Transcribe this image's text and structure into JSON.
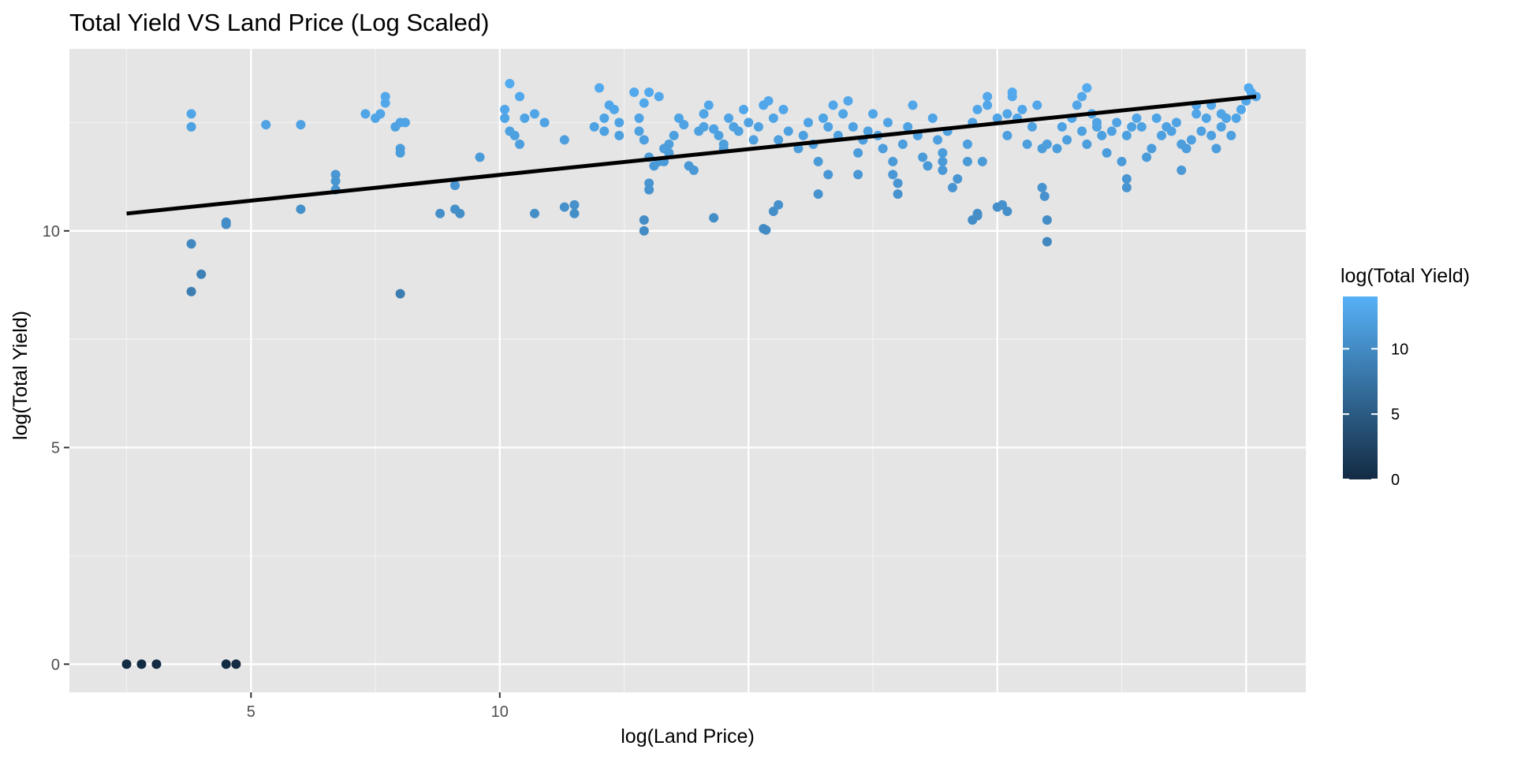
{
  "chart_data": {
    "type": "scatter",
    "title": "Total Yield VS Land Price (Log Scaled)",
    "xlabel": "log(Land Price)",
    "ylabel": "log(Total Yield)",
    "xlim": [
      1.35,
      26.2
    ],
    "ylim": [
      -0.65,
      14.2
    ],
    "x_ticks": [
      5,
      10
    ],
    "y_ticks": [
      0,
      5,
      10
    ],
    "x_tick_labels": [
      "5",
      "10"
    ],
    "y_tick_labels": [
      "0",
      "5",
      "10"
    ],
    "background": "#e5e5e5",
    "grid": true,
    "legend": {
      "title": "log(Total Yield)",
      "position": "right",
      "ticks": [
        0,
        5,
        10
      ],
      "tick_labels": [
        "0",
        "5",
        "10"
      ],
      "range": [
        0,
        14
      ],
      "color_low": "#132b43",
      "color_high": "#56b1f7"
    },
    "trend_line": {
      "x": [
        2.5,
        25.2
      ],
      "y": [
        10.4,
        13.1
      ],
      "color": "#000000"
    },
    "points": [
      [
        2.5,
        0
      ],
      [
        2.8,
        0
      ],
      [
        3.1,
        0
      ],
      [
        4.5,
        0
      ],
      [
        4.7,
        0
      ],
      [
        3.8,
        12.7
      ],
      [
        3.8,
        12.4
      ],
      [
        3.8,
        9.7
      ],
      [
        3.8,
        8.6
      ],
      [
        4.0,
        9.0
      ],
      [
        4.5,
        10.2
      ],
      [
        4.5,
        10.15
      ],
      [
        5.3,
        12.45
      ],
      [
        6.0,
        12.45
      ],
      [
        6.0,
        10.5
      ],
      [
        6.7,
        11.3
      ],
      [
        6.7,
        11.15
      ],
      [
        6.7,
        10.95
      ],
      [
        7.3,
        12.7
      ],
      [
        7.5,
        12.6
      ],
      [
        7.6,
        12.7
      ],
      [
        7.7,
        12.95
      ],
      [
        7.7,
        13.1
      ],
      [
        7.9,
        12.4
      ],
      [
        8.0,
        12.5
      ],
      [
        8.0,
        11.9
      ],
      [
        8.0,
        11.8
      ],
      [
        8.1,
        12.5
      ],
      [
        8.0,
        8.55
      ],
      [
        8.8,
        10.4
      ],
      [
        9.1,
        11.05
      ],
      [
        9.1,
        10.5
      ],
      [
        9.2,
        10.4
      ],
      [
        9.6,
        11.7
      ],
      [
        10.1,
        12.8
      ],
      [
        10.1,
        12.6
      ],
      [
        10.2,
        12.3
      ],
      [
        10.3,
        12.2
      ],
      [
        10.4,
        12.0
      ],
      [
        10.2,
        13.4
      ],
      [
        10.4,
        13.1
      ],
      [
        10.5,
        12.6
      ],
      [
        10.7,
        12.7
      ],
      [
        10.9,
        12.5
      ],
      [
        10.7,
        10.4
      ],
      [
        11.3,
        12.1
      ],
      [
        11.3,
        10.55
      ],
      [
        11.5,
        10.6
      ],
      [
        11.5,
        10.4
      ],
      [
        11.9,
        12.4
      ],
      [
        12.0,
        13.3
      ],
      [
        12.1,
        12.6
      ],
      [
        12.2,
        12.9
      ],
      [
        12.1,
        12.3
      ],
      [
        12.3,
        12.8
      ],
      [
        12.4,
        12.2
      ],
      [
        12.4,
        12.5
      ],
      [
        12.7,
        13.2
      ],
      [
        12.8,
        12.6
      ],
      [
        12.8,
        12.3
      ],
      [
        12.9,
        12.1
      ],
      [
        13.0,
        11.7
      ],
      [
        13.1,
        11.5
      ],
      [
        13.2,
        11.6
      ],
      [
        13.3,
        11.6
      ],
      [
        13.4,
        12.0
      ],
      [
        12.9,
        12.95
      ],
      [
        13.0,
        13.2
      ],
      [
        13.2,
        13.1
      ],
      [
        13.3,
        11.9
      ],
      [
        12.9,
        10.25
      ],
      [
        12.9,
        10.0
      ],
      [
        13.0,
        11.1
      ],
      [
        13.0,
        10.95
      ],
      [
        13.4,
        11.8
      ],
      [
        13.5,
        12.2
      ],
      [
        13.6,
        12.6
      ],
      [
        13.7,
        12.45
      ],
      [
        13.8,
        11.5
      ],
      [
        13.9,
        11.4
      ],
      [
        14.0,
        12.3
      ],
      [
        14.1,
        12.4
      ],
      [
        14.1,
        12.7
      ],
      [
        14.2,
        12.9
      ],
      [
        14.3,
        12.35
      ],
      [
        14.4,
        12.2
      ],
      [
        14.5,
        11.9
      ],
      [
        14.3,
        10.3
      ],
      [
        14.5,
        12.0
      ],
      [
        14.6,
        12.6
      ],
      [
        14.7,
        12.4
      ],
      [
        14.8,
        12.3
      ],
      [
        14.9,
        12.8
      ],
      [
        15.0,
        12.5
      ],
      [
        15.1,
        12.1
      ],
      [
        15.2,
        12.4
      ],
      [
        15.3,
        12.9
      ],
      [
        15.4,
        13.0
      ],
      [
        15.5,
        12.6
      ],
      [
        15.6,
        12.1
      ],
      [
        15.3,
        10.05
      ],
      [
        15.35,
        10.02
      ],
      [
        15.5,
        10.45
      ],
      [
        15.6,
        10.6
      ],
      [
        15.7,
        12.8
      ],
      [
        15.8,
        12.3
      ],
      [
        16.0,
        11.9
      ],
      [
        16.1,
        12.2
      ],
      [
        16.2,
        12.5
      ],
      [
        16.3,
        12.0
      ],
      [
        16.4,
        11.6
      ],
      [
        16.5,
        12.6
      ],
      [
        16.6,
        12.4
      ],
      [
        16.7,
        12.9
      ],
      [
        16.8,
        12.2
      ],
      [
        16.9,
        12.7
      ],
      [
        16.4,
        10.85
      ],
      [
        16.6,
        11.3
      ],
      [
        17.0,
        13.0
      ],
      [
        17.1,
        12.4
      ],
      [
        17.2,
        11.8
      ],
      [
        17.3,
        12.1
      ],
      [
        17.4,
        12.3
      ],
      [
        17.2,
        11.3
      ],
      [
        17.5,
        12.7
      ],
      [
        17.6,
        12.2
      ],
      [
        17.7,
        11.9
      ],
      [
        17.8,
        12.5
      ],
      [
        17.9,
        11.6
      ],
      [
        17.9,
        11.3
      ],
      [
        18.0,
        11.1
      ],
      [
        18.0,
        10.85
      ],
      [
        18.1,
        12.0
      ],
      [
        18.2,
        12.4
      ],
      [
        18.3,
        12.9
      ],
      [
        18.4,
        12.2
      ],
      [
        18.5,
        11.7
      ],
      [
        18.6,
        11.5
      ],
      [
        18.7,
        12.6
      ],
      [
        18.8,
        12.1
      ],
      [
        18.9,
        11.8
      ],
      [
        18.9,
        11.6
      ],
      [
        18.9,
        11.4
      ],
      [
        19.0,
        12.3
      ],
      [
        19.2,
        11.2
      ],
      [
        19.4,
        12.0
      ],
      [
        19.5,
        12.5
      ],
      [
        19.6,
        12.8
      ],
      [
        19.7,
        11.6
      ],
      [
        19.8,
        13.1
      ],
      [
        19.8,
        12.9
      ],
      [
        20.0,
        12.6
      ],
      [
        20.2,
        12.7
      ],
      [
        19.1,
        11.0
      ],
      [
        19.4,
        11.6
      ],
      [
        19.6,
        10.4
      ],
      [
        19.5,
        10.25
      ],
      [
        19.6,
        10.35
      ],
      [
        20.0,
        10.55
      ],
      [
        20.1,
        10.6
      ],
      [
        20.2,
        10.45
      ],
      [
        20.2,
        12.2
      ],
      [
        20.3,
        13.1
      ],
      [
        20.4,
        12.6
      ],
      [
        20.3,
        13.2
      ],
      [
        20.5,
        12.8
      ],
      [
        20.6,
        12.0
      ],
      [
        20.7,
        12.4
      ],
      [
        20.8,
        12.9
      ],
      [
        20.9,
        11.9
      ],
      [
        20.9,
        11.0
      ],
      [
        20.95,
        10.8
      ],
      [
        21.0,
        12.0
      ],
      [
        21.2,
        11.9
      ],
      [
        21.3,
        12.4
      ],
      [
        21.4,
        12.1
      ],
      [
        21.5,
        12.6
      ],
      [
        21.6,
        12.9
      ],
      [
        21.7,
        12.3
      ],
      [
        21.8,
        12.0
      ],
      [
        21.9,
        12.7
      ],
      [
        22.0,
        12.4
      ],
      [
        21.8,
        13.3
      ],
      [
        21.7,
        13.1
      ],
      [
        21.0,
        10.25
      ],
      [
        21.0,
        9.75
      ],
      [
        22.0,
        12.5
      ],
      [
        22.1,
        12.2
      ],
      [
        22.2,
        11.8
      ],
      [
        22.3,
        12.3
      ],
      [
        22.4,
        12.5
      ],
      [
        22.5,
        11.6
      ],
      [
        22.6,
        12.2
      ],
      [
        22.6,
        11.2
      ],
      [
        22.6,
        11.0
      ],
      [
        22.7,
        12.4
      ],
      [
        22.8,
        12.6
      ],
      [
        22.9,
        12.4
      ],
      [
        23.0,
        11.7
      ],
      [
        23.1,
        11.9
      ],
      [
        23.2,
        12.6
      ],
      [
        23.3,
        12.2
      ],
      [
        23.4,
        12.4
      ],
      [
        23.5,
        12.3
      ],
      [
        23.6,
        12.5
      ],
      [
        23.7,
        12.0
      ],
      [
        23.7,
        11.4
      ],
      [
        23.8,
        11.9
      ],
      [
        23.9,
        12.1
      ],
      [
        24.0,
        12.7
      ],
      [
        24.0,
        12.9
      ],
      [
        24.1,
        12.3
      ],
      [
        24.2,
        12.6
      ],
      [
        24.3,
        12.2
      ],
      [
        24.3,
        12.9
      ],
      [
        24.4,
        11.9
      ],
      [
        24.5,
        12.4
      ],
      [
        24.5,
        12.7
      ],
      [
        24.6,
        12.6
      ],
      [
        24.7,
        12.2
      ],
      [
        24.8,
        12.6
      ],
      [
        24.9,
        12.8
      ],
      [
        25.0,
        13.0
      ],
      [
        25.05,
        13.3
      ],
      [
        25.1,
        13.2
      ],
      [
        25.2,
        13.1
      ]
    ]
  }
}
